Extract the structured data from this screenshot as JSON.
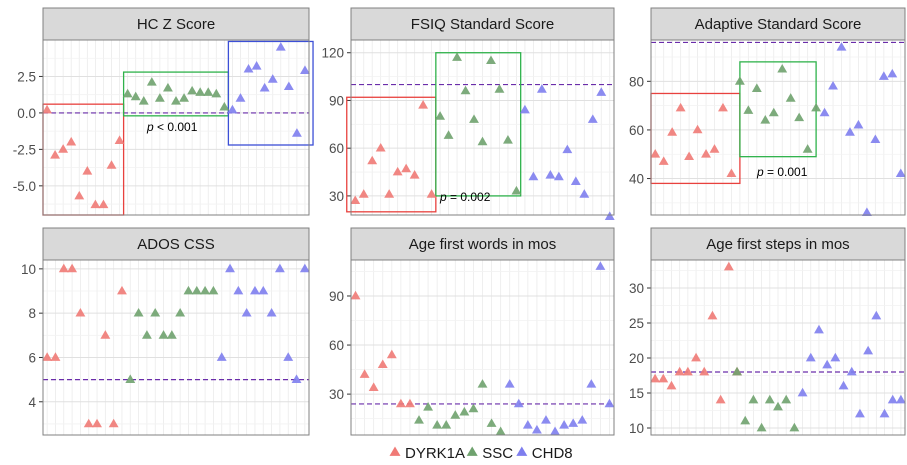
{
  "colors": {
    "DYRK1A": "#F8766D",
    "SSC": "#619CFF_placeholder",
    "CHD8": "#7B7BEF",
    "strip_bg": "#D9D9D9",
    "strip_border": "#7f7f7f",
    "grid_major": "#E3E3E3",
    "grid_minor": "#F2F2F2",
    "panel_border": "#7f7f7f",
    "ref_line": "#6A2DAA"
  },
  "legend": {
    "entries": [
      {
        "name": "DYRK1A",
        "color": "#F07A76"
      },
      {
        "name": "SSC",
        "color": "#6FA26E"
      },
      {
        "name": "CHD8",
        "color": "#7E7EEE"
      }
    ]
  },
  "chart_data": [
    {
      "type": "scatter",
      "title": "HC Z Score",
      "ylim": [
        -7,
        5
      ],
      "yticks": [
        -5.0,
        -2.5,
        0.0,
        2.5
      ],
      "ytick_labels": [
        "-5.0",
        "-2.5",
        "0.0",
        "2.5"
      ],
      "ref_line": 0,
      "p_value": "< 0.001",
      "series": [
        {
          "name": "DYRK1A",
          "x": [
            1,
            2,
            3,
            4,
            5,
            6,
            7,
            8,
            9,
            10
          ],
          "y": [
            0.2,
            -2.9,
            -2.5,
            -2.0,
            -5.7,
            -4.0,
            -6.3,
            -6.3,
            -3.6,
            -1.9
          ]
        },
        {
          "name": "SSC",
          "x": [
            11,
            12,
            13,
            14,
            15,
            16,
            17,
            18,
            19,
            20,
            21,
            22,
            23
          ],
          "y": [
            1.3,
            1.1,
            0.8,
            2.1,
            1.0,
            1.7,
            0.8,
            1.0,
            1.5,
            1.4,
            1.4,
            1.3,
            0.4
          ]
        },
        {
          "name": "CHD8",
          "x": [
            24,
            25,
            26,
            27,
            28,
            29,
            30,
            31,
            32,
            33
          ],
          "y": [
            0.2,
            1.0,
            3.0,
            3.2,
            1.7,
            2.3,
            4.5,
            1.8,
            -1.4,
            2.9
          ]
        }
      ],
      "boxes": [
        {
          "group": "DYRK1A",
          "x": [
            0.5,
            10.5
          ],
          "y": [
            0.6,
            -7.0
          ]
        },
        {
          "group": "SSC",
          "x": [
            10.5,
            23.5
          ],
          "y": [
            -0.2,
            2.8
          ]
        },
        {
          "group": "CHD8",
          "x": [
            23.5,
            34.0
          ],
          "y": [
            -2.2,
            4.9
          ]
        }
      ]
    },
    {
      "type": "scatter",
      "title": "FSIQ Standard Score",
      "ylim": [
        18,
        128
      ],
      "yticks": [
        30,
        60,
        90,
        120
      ],
      "ytick_labels": [
        "30",
        "60",
        "90",
        "120"
      ],
      "ref_line": 100,
      "p_value": "= 0.002",
      "series": [
        {
          "name": "DYRK1A",
          "x": [
            1,
            2,
            3,
            4,
            5,
            6,
            7,
            8,
            9,
            10
          ],
          "y": [
            27,
            31,
            52,
            60,
            31,
            45,
            47,
            43,
            87,
            31
          ]
        },
        {
          "name": "SSC",
          "x": [
            11,
            12,
            13,
            14,
            15,
            16,
            17,
            18,
            19,
            20
          ],
          "y": [
            80,
            68,
            117,
            96,
            78,
            64,
            115,
            97,
            65,
            33
          ]
        },
        {
          "name": "CHD8",
          "x": [
            21,
            22,
            23,
            24,
            25,
            26,
            27,
            28,
            29,
            30,
            31
          ],
          "y": [
            84,
            42,
            97,
            43,
            42,
            59,
            39,
            31,
            78,
            95,
            17
          ]
        }
      ],
      "boxes": [
        {
          "group": "DYRK1A",
          "x": [
            0.0,
            10.5
          ],
          "y": [
            20,
            92
          ]
        },
        {
          "group": "SSC",
          "x": [
            10.5,
            20.5
          ],
          "y": [
            30,
            120
          ]
        }
      ]
    },
    {
      "type": "scatter",
      "title": "Adaptive Standard Score",
      "ylim": [
        25,
        97
      ],
      "yticks": [
        40,
        60,
        80
      ],
      "ytick_labels": [
        "40",
        "60",
        "80"
      ],
      "ref_line": 96,
      "p_value": "= 0.001",
      "series": [
        {
          "name": "DYRK1A",
          "x": [
            1,
            2,
            3,
            4,
            5,
            6,
            7,
            8,
            9,
            10
          ],
          "y": [
            50,
            47,
            59,
            69,
            49,
            60,
            50,
            52,
            69,
            42
          ]
        },
        {
          "name": "SSC",
          "x": [
            11,
            12,
            13,
            14,
            15,
            16,
            17,
            18,
            19,
            20
          ],
          "y": [
            80,
            68,
            77,
            64,
            67,
            85,
            73,
            65,
            52,
            69
          ]
        },
        {
          "name": "CHD8",
          "x": [
            21,
            22,
            23,
            24,
            25,
            26,
            27,
            28,
            29,
            30
          ],
          "y": [
            67,
            78,
            94,
            59,
            62,
            26,
            56,
            82,
            83,
            42
          ]
        }
      ],
      "boxes": [
        {
          "group": "DYRK1A",
          "x": [
            0.5,
            11.0
          ],
          "y": [
            38,
            75
          ]
        },
        {
          "group": "SSC",
          "x": [
            11.0,
            20.0
          ],
          "y": [
            49,
            88
          ]
        }
      ]
    },
    {
      "type": "scatter",
      "title": "ADOS CSS",
      "ylim": [
        2.5,
        10.4
      ],
      "yticks": [
        4,
        6,
        8,
        10
      ],
      "ytick_labels": [
        "4",
        "6",
        "8",
        "10"
      ],
      "ref_line": 5,
      "series": [
        {
          "name": "DYRK1A",
          "x": [
            1,
            2,
            3,
            4,
            5,
            6,
            7,
            8,
            9,
            10
          ],
          "y": [
            6,
            6,
            10,
            10,
            8,
            3,
            3,
            7,
            3,
            9
          ]
        },
        {
          "name": "SSC",
          "x": [
            11,
            12,
            13,
            14,
            15,
            16,
            17,
            18,
            19,
            20,
            21
          ],
          "y": [
            5,
            8,
            7,
            8,
            7,
            7,
            8,
            9,
            9,
            9,
            9
          ]
        },
        {
          "name": "CHD8",
          "x": [
            22,
            23,
            24,
            25,
            26,
            27,
            28,
            29,
            30,
            31,
            32
          ],
          "y": [
            6,
            10,
            9,
            8,
            9,
            9,
            8,
            10,
            6,
            5,
            10
          ]
        }
      ]
    },
    {
      "type": "scatter",
      "title": "Age first words in mos",
      "ylim": [
        5,
        112
      ],
      "yticks": [
        30,
        60,
        90
      ],
      "ytick_labels": [
        "30",
        "60",
        "90"
      ],
      "ref_line": 24,
      "series": [
        {
          "name": "DYRK1A",
          "x": [
            1,
            2,
            3,
            4,
            5,
            6,
            7
          ],
          "y": [
            90,
            42,
            34,
            48,
            54,
            24,
            24
          ]
        },
        {
          "name": "SSC",
          "x": [
            8,
            9,
            10,
            11,
            12,
            13,
            14,
            15,
            16,
            17
          ],
          "y": [
            14,
            22,
            11,
            11,
            17,
            19,
            21,
            36,
            12,
            7
          ]
        },
        {
          "name": "CHD8",
          "x": [
            18,
            19,
            20,
            21,
            22,
            23,
            24,
            25,
            26,
            27,
            28,
            29
          ],
          "y": [
            36,
            24,
            11,
            8,
            14,
            7,
            11,
            12,
            14,
            36,
            108,
            24
          ]
        }
      ]
    },
    {
      "type": "scatter",
      "title": "Age first steps in mos",
      "ylim": [
        9,
        34
      ],
      "yticks": [
        10,
        15,
        20,
        25,
        30
      ],
      "ytick_labels": [
        "10",
        "15",
        "20",
        "25",
        "30"
      ],
      "ref_line": 18,
      "series": [
        {
          "name": "DYRK1A",
          "x": [
            1,
            2,
            3,
            4,
            5,
            6,
            7,
            8,
            9,
            10,
            11
          ],
          "y": [
            17,
            17,
            16,
            18,
            18,
            20,
            18,
            26,
            14,
            33,
            18
          ]
        },
        {
          "name": "SSC",
          "x": [
            11,
            12,
            13,
            14,
            15,
            16,
            17,
            18
          ],
          "y": [
            18,
            11,
            14,
            10,
            14,
            13,
            14,
            10
          ]
        },
        {
          "name": "CHD8",
          "x": [
            19,
            20,
            21,
            22,
            23,
            24,
            25,
            26,
            27,
            28,
            29,
            30,
            31
          ],
          "y": [
            15,
            20,
            24,
            19,
            20,
            16,
            18,
            12,
            21,
            26,
            12,
            14,
            14
          ]
        }
      ]
    }
  ]
}
